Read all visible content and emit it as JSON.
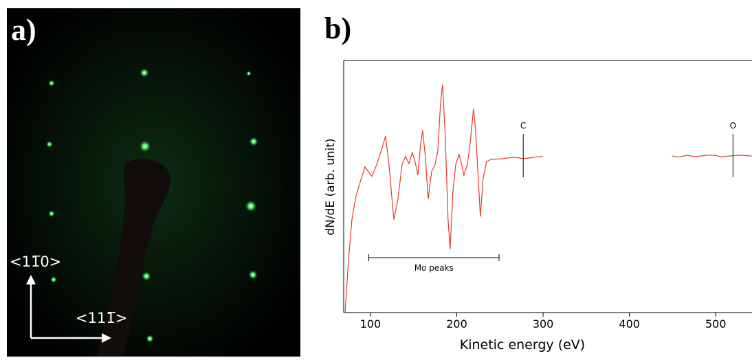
{
  "panel_a": {
    "label": "a)",
    "direction_vertical": "<11̅0>",
    "direction_horizontal": "<111̅>"
  },
  "chart_data": {
    "type": "line",
    "panel_label": "b)",
    "xlabel": "Kinetic energy (eV)",
    "ylabel": "dN/dE (arb. unit)",
    "xlim": [
      69,
      542
    ],
    "xticks": [
      100,
      200,
      300,
      400,
      500
    ],
    "ylim": [
      0,
      100
    ],
    "series": [
      {
        "color": "#e8392b",
        "x": [
          70.6,
          74.5,
          78.5,
          83.3,
          88.9,
          93.6,
          101.6,
          107.2,
          113.5,
          117.5,
          121.5,
          127.1,
          131.8,
          136.6,
          140.6,
          144.6,
          148.5,
          151.7,
          154.9,
          158.1,
          160.5,
          163.7,
          166.9,
          170.8,
          174.8,
          178.0,
          181.2,
          183.6,
          186.7,
          189.9,
          192.3,
          195.5,
          198.7,
          202.7,
          205.8,
          208.2,
          212.2,
          215.4,
          219.4,
          221.8,
          224.9,
          227.3,
          230.5,
          234.5,
          240.1,
          252.0,
          260.0,
          267.9,
          275.9,
          283.8,
          291.8,
          299.8,
          374.0,
          449.4,
          457.4,
          466.9,
          474.9,
          482.8,
          490.8,
          498.7,
          506.7,
          514.6,
          522.6,
          530.5,
          541.7
        ],
        "values": [
          0,
          20.4,
          36.8,
          46.3,
          52.6,
          57.8,
          54.0,
          58.6,
          65.4,
          70.0,
          58.6,
          36.8,
          44.9,
          58.6,
          61.9,
          59.1,
          63.5,
          59.9,
          54.5,
          66.8,
          72.2,
          61.3,
          45.0,
          55.9,
          58.6,
          64.0,
          83.1,
          90.5,
          69.5,
          36.8,
          25.1,
          47.7,
          58.6,
          62.7,
          58.6,
          54.5,
          58.6,
          66.8,
          80.9,
          72.2,
          53.1,
          38.1,
          53.1,
          59.9,
          60.8,
          61.0,
          61.4,
          61.6,
          61.1,
          61.3,
          61.7,
          61.9,
          null,
          62.1,
          61.7,
          62.4,
          61.9,
          62.1,
          62.5,
          62.4,
          61.8,
          62.1,
          62.3,
          62.4,
          62.1
        ]
      }
    ],
    "annotations": [
      {
        "text": "C",
        "x": 277
      },
      {
        "text": "O",
        "x": 520
      }
    ],
    "range_annotation": {
      "text": "Mo peaks",
      "x": [
        98,
        249
      ]
    }
  }
}
